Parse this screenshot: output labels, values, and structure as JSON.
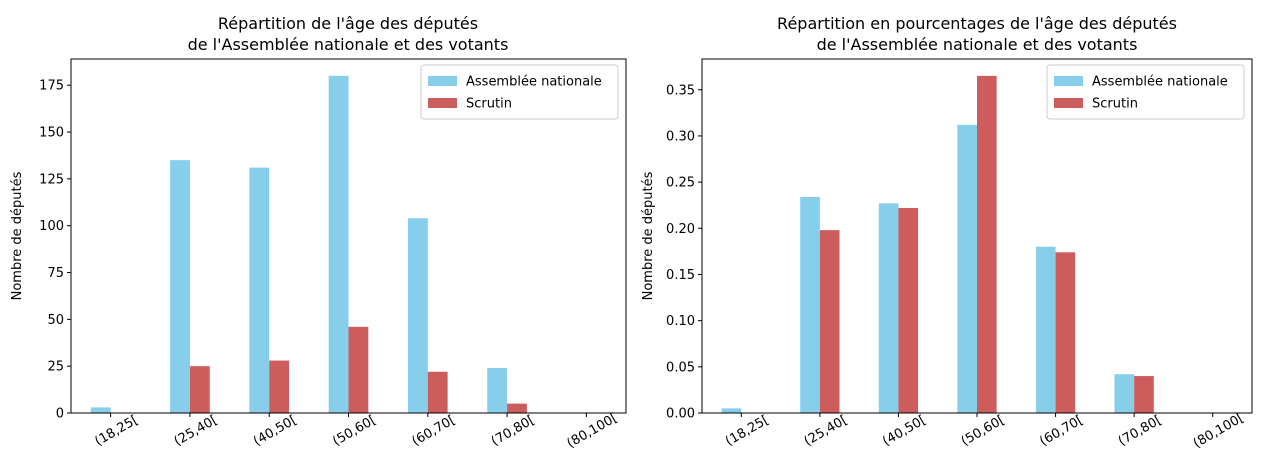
{
  "colors": {
    "assemblee": "#87ceeb",
    "scrutin": "#cd5c5c"
  },
  "chart_data": [
    {
      "type": "bar",
      "title_line1": "Répartition de l'âge des députés",
      "title_line2": "de l'Assemblée nationale et des votants",
      "ylabel": "Nombre de députés",
      "xlabel": "",
      "categories": [
        "(18,25[",
        "(25,40[",
        "(40,50[",
        "(50,60[",
        "(60,70[",
        "(70,80[",
        "(80,100["
      ],
      "series": [
        {
          "name": "Assemblée nationale",
          "values": [
            3,
            135,
            131,
            180,
            104,
            24,
            0
          ]
        },
        {
          "name": "Scrutin",
          "values": [
            0,
            25,
            28,
            46,
            22,
            5,
            0
          ]
        }
      ],
      "ylim": [
        0,
        189
      ],
      "yticks": [
        0,
        25,
        50,
        75,
        100,
        125,
        150,
        175
      ],
      "ytick_labels": [
        "0",
        "25",
        "50",
        "75",
        "100",
        "125",
        "150",
        "175"
      ],
      "legend": "top-right",
      "grid": false
    },
    {
      "type": "bar",
      "title_line1": "Répartition en pourcentages de l'âge des députés",
      "title_line2": "de l'Assemblée nationale et des votants",
      "ylabel": "Nombre de députés",
      "xlabel": "",
      "categories": [
        "(18,25[",
        "(25,40[",
        "(40,50[",
        "(50,60[",
        "(60,70[",
        "(70,80[",
        "(80,100["
      ],
      "series": [
        {
          "name": "Assemblée nationale",
          "values": [
            0.005,
            0.234,
            0.227,
            0.312,
            0.18,
            0.042,
            0.0
          ]
        },
        {
          "name": "Scrutin",
          "values": [
            0.0,
            0.198,
            0.222,
            0.365,
            0.174,
            0.04,
            0.0
          ]
        }
      ],
      "ylim": [
        0,
        0.3833
      ],
      "yticks": [
        0,
        0.05,
        0.1,
        0.15,
        0.2,
        0.25,
        0.3,
        0.35
      ],
      "ytick_labels": [
        "0.00",
        "0.05",
        "0.10",
        "0.15",
        "0.20",
        "0.25",
        "0.30",
        "0.35"
      ],
      "legend": "top-right",
      "grid": false
    }
  ]
}
